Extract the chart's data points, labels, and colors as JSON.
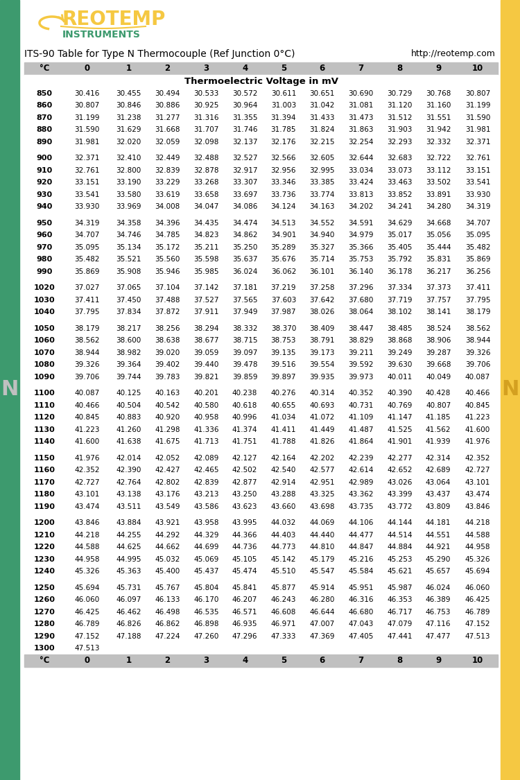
{
  "title": "ITS-90 Table for Type N Thermocouple (Ref Junction 0°C)",
  "url": "http://reotemp.com",
  "subtitle": "Thermoelectric Voltage in mV",
  "header": [
    "°C",
    "0",
    "1",
    "2",
    "3",
    "4",
    "5",
    "6",
    "7",
    "8",
    "9",
    "10"
  ],
  "table_data": [
    [
      "850",
      "30.416",
      "30.455",
      "30.494",
      "30.533",
      "30.572",
      "30.611",
      "30.651",
      "30.690",
      "30.729",
      "30.768",
      "30.807"
    ],
    [
      "860",
      "30.807",
      "30.846",
      "30.886",
      "30.925",
      "30.964",
      "31.003",
      "31.042",
      "31.081",
      "31.120",
      "31.160",
      "31.199"
    ],
    [
      "870",
      "31.199",
      "31.238",
      "31.277",
      "31.316",
      "31.355",
      "31.394",
      "31.433",
      "31.473",
      "31.512",
      "31.551",
      "31.590"
    ],
    [
      "880",
      "31.590",
      "31.629",
      "31.668",
      "31.707",
      "31.746",
      "31.785",
      "31.824",
      "31.863",
      "31.903",
      "31.942",
      "31.981"
    ],
    [
      "890",
      "31.981",
      "32.020",
      "32.059",
      "32.098",
      "32.137",
      "32.176",
      "32.215",
      "32.254",
      "32.293",
      "32.332",
      "32.371"
    ],
    [
      "",
      "",
      "",
      "",
      "",
      "",
      "",
      "",
      "",
      "",
      "",
      ""
    ],
    [
      "900",
      "32.371",
      "32.410",
      "32.449",
      "32.488",
      "32.527",
      "32.566",
      "32.605",
      "32.644",
      "32.683",
      "32.722",
      "32.761"
    ],
    [
      "910",
      "32.761",
      "32.800",
      "32.839",
      "32.878",
      "32.917",
      "32.956",
      "32.995",
      "33.034",
      "33.073",
      "33.112",
      "33.151"
    ],
    [
      "920",
      "33.151",
      "33.190",
      "33.229",
      "33.268",
      "33.307",
      "33.346",
      "33.385",
      "33.424",
      "33.463",
      "33.502",
      "33.541"
    ],
    [
      "930",
      "33.541",
      "33.580",
      "33.619",
      "33.658",
      "33.697",
      "33.736",
      "33.774",
      "33.813",
      "33.852",
      "33.891",
      "33.930"
    ],
    [
      "940",
      "33.930",
      "33.969",
      "34.008",
      "34.047",
      "34.086",
      "34.124",
      "34.163",
      "34.202",
      "34.241",
      "34.280",
      "34.319"
    ],
    [
      "",
      "",
      "",
      "",
      "",
      "",
      "",
      "",
      "",
      "",
      "",
      ""
    ],
    [
      "950",
      "34.319",
      "34.358",
      "34.396",
      "34.435",
      "34.474",
      "34.513",
      "34.552",
      "34.591",
      "34.629",
      "34.668",
      "34.707"
    ],
    [
      "960",
      "34.707",
      "34.746",
      "34.785",
      "34.823",
      "34.862",
      "34.901",
      "34.940",
      "34.979",
      "35.017",
      "35.056",
      "35.095"
    ],
    [
      "970",
      "35.095",
      "35.134",
      "35.172",
      "35.211",
      "35.250",
      "35.289",
      "35.327",
      "35.366",
      "35.405",
      "35.444",
      "35.482"
    ],
    [
      "980",
      "35.482",
      "35.521",
      "35.560",
      "35.598",
      "35.637",
      "35.676",
      "35.714",
      "35.753",
      "35.792",
      "35.831",
      "35.869"
    ],
    [
      "990",
      "35.869",
      "35.908",
      "35.946",
      "35.985",
      "36.024",
      "36.062",
      "36.101",
      "36.140",
      "36.178",
      "36.217",
      "36.256"
    ],
    [
      "",
      "",
      "",
      "",
      "",
      "",
      "",
      "",
      "",
      "",
      "",
      ""
    ],
    [
      "1020",
      "37.027",
      "37.065",
      "37.104",
      "37.142",
      "37.181",
      "37.219",
      "37.258",
      "37.296",
      "37.334",
      "37.373",
      "37.411"
    ],
    [
      "1030",
      "37.411",
      "37.450",
      "37.488",
      "37.527",
      "37.565",
      "37.603",
      "37.642",
      "37.680",
      "37.719",
      "37.757",
      "37.795"
    ],
    [
      "1040",
      "37.795",
      "37.834",
      "37.872",
      "37.911",
      "37.949",
      "37.987",
      "38.026",
      "38.064",
      "38.102",
      "38.141",
      "38.179"
    ],
    [
      "",
      "",
      "",
      "",
      "",
      "",
      "",
      "",
      "",
      "",
      "",
      ""
    ],
    [
      "1050",
      "38.179",
      "38.217",
      "38.256",
      "38.294",
      "38.332",
      "38.370",
      "38.409",
      "38.447",
      "38.485",
      "38.524",
      "38.562"
    ],
    [
      "1060",
      "38.562",
      "38.600",
      "38.638",
      "38.677",
      "38.715",
      "38.753",
      "38.791",
      "38.829",
      "38.868",
      "38.906",
      "38.944"
    ],
    [
      "1070",
      "38.944",
      "38.982",
      "39.020",
      "39.059",
      "39.097",
      "39.135",
      "39.173",
      "39.211",
      "39.249",
      "39.287",
      "39.326"
    ],
    [
      "1080",
      "39.326",
      "39.364",
      "39.402",
      "39.440",
      "39.478",
      "39.516",
      "39.554",
      "39.592",
      "39.630",
      "39.668",
      "39.706"
    ],
    [
      "1090",
      "39.706",
      "39.744",
      "39.783",
      "39.821",
      "39.859",
      "39.897",
      "39.935",
      "39.973",
      "40.011",
      "40.049",
      "40.087"
    ],
    [
      "",
      "",
      "",
      "",
      "",
      "",
      "",
      "",
      "",
      "",
      "",
      ""
    ],
    [
      "1100",
      "40.087",
      "40.125",
      "40.163",
      "40.201",
      "40.238",
      "40.276",
      "40.314",
      "40.352",
      "40.390",
      "40.428",
      "40.466"
    ],
    [
      "1110",
      "40.466",
      "40.504",
      "40.542",
      "40.580",
      "40.618",
      "40.655",
      "40.693",
      "40.731",
      "40.769",
      "40.807",
      "40.845"
    ],
    [
      "1120",
      "40.845",
      "40.883",
      "40.920",
      "40.958",
      "40.996",
      "41.034",
      "41.072",
      "41.109",
      "41.147",
      "41.185",
      "41.223"
    ],
    [
      "1130",
      "41.223",
      "41.260",
      "41.298",
      "41.336",
      "41.374",
      "41.411",
      "41.449",
      "41.487",
      "41.525",
      "41.562",
      "41.600"
    ],
    [
      "1140",
      "41.600",
      "41.638",
      "41.675",
      "41.713",
      "41.751",
      "41.788",
      "41.826",
      "41.864",
      "41.901",
      "41.939",
      "41.976"
    ],
    [
      "",
      "",
      "",
      "",
      "",
      "",
      "",
      "",
      "",
      "",
      "",
      ""
    ],
    [
      "1150",
      "41.976",
      "42.014",
      "42.052",
      "42.089",
      "42.127",
      "42.164",
      "42.202",
      "42.239",
      "42.277",
      "42.314",
      "42.352"
    ],
    [
      "1160",
      "42.352",
      "42.390",
      "42.427",
      "42.465",
      "42.502",
      "42.540",
      "42.577",
      "42.614",
      "42.652",
      "42.689",
      "42.727"
    ],
    [
      "1170",
      "42.727",
      "42.764",
      "42.802",
      "42.839",
      "42.877",
      "42.914",
      "42.951",
      "42.989",
      "43.026",
      "43.064",
      "43.101"
    ],
    [
      "1180",
      "43.101",
      "43.138",
      "43.176",
      "43.213",
      "43.250",
      "43.288",
      "43.325",
      "43.362",
      "43.399",
      "43.437",
      "43.474"
    ],
    [
      "1190",
      "43.474",
      "43.511",
      "43.549",
      "43.586",
      "43.623",
      "43.660",
      "43.698",
      "43.735",
      "43.772",
      "43.809",
      "43.846"
    ],
    [
      "",
      "",
      "",
      "",
      "",
      "",
      "",
      "",
      "",
      "",
      "",
      ""
    ],
    [
      "1200",
      "43.846",
      "43.884",
      "43.921",
      "43.958",
      "43.995",
      "44.032",
      "44.069",
      "44.106",
      "44.144",
      "44.181",
      "44.218"
    ],
    [
      "1210",
      "44.218",
      "44.255",
      "44.292",
      "44.329",
      "44.366",
      "44.403",
      "44.440",
      "44.477",
      "44.514",
      "44.551",
      "44.588"
    ],
    [
      "1220",
      "44.588",
      "44.625",
      "44.662",
      "44.699",
      "44.736",
      "44.773",
      "44.810",
      "44.847",
      "44.884",
      "44.921",
      "44.958"
    ],
    [
      "1230",
      "44.958",
      "44.995",
      "45.032",
      "45.069",
      "45.105",
      "45.142",
      "45.179",
      "45.216",
      "45.253",
      "45.290",
      "45.326"
    ],
    [
      "1240",
      "45.326",
      "45.363",
      "45.400",
      "45.437",
      "45.474",
      "45.510",
      "45.547",
      "45.584",
      "45.621",
      "45.657",
      "45.694"
    ],
    [
      "",
      "",
      "",
      "",
      "",
      "",
      "",
      "",
      "",
      "",
      "",
      ""
    ],
    [
      "1250",
      "45.694",
      "45.731",
      "45.767",
      "45.804",
      "45.841",
      "45.877",
      "45.914",
      "45.951",
      "45.987",
      "46.024",
      "46.060"
    ],
    [
      "1260",
      "46.060",
      "46.097",
      "46.133",
      "46.170",
      "46.207",
      "46.243",
      "46.280",
      "46.316",
      "46.353",
      "46.389",
      "46.425"
    ],
    [
      "1270",
      "46.425",
      "46.462",
      "46.498",
      "46.535",
      "46.571",
      "46.608",
      "46.644",
      "46.680",
      "46.717",
      "46.753",
      "46.789"
    ],
    [
      "1280",
      "46.789",
      "46.826",
      "46.862",
      "46.898",
      "46.935",
      "46.971",
      "47.007",
      "47.043",
      "47.079",
      "47.116",
      "47.152"
    ],
    [
      "1290",
      "47.152",
      "47.188",
      "47.224",
      "47.260",
      "47.296",
      "47.333",
      "47.369",
      "47.405",
      "47.441",
      "47.477",
      "47.513"
    ],
    [
      "1300",
      "47.513",
      "",
      "",
      "",
      "",
      "",
      "",
      "",
      "",
      "",
      ""
    ]
  ],
  "header_bg": "#c0c0c0",
  "header_fg": "#000000",
  "body_bg": "#ffffff",
  "body_fg": "#000000",
  "temp_col_bold": true,
  "left_bar_color": "#3d9a6e",
  "right_bar_color": "#f5c842",
  "logo_text_color": "#f5c842",
  "instruments_color": "#3d9a6e",
  "title_color": "#000000",
  "N_color": "#a0a0a0",
  "subtitle_row_bg": "#ffffff"
}
